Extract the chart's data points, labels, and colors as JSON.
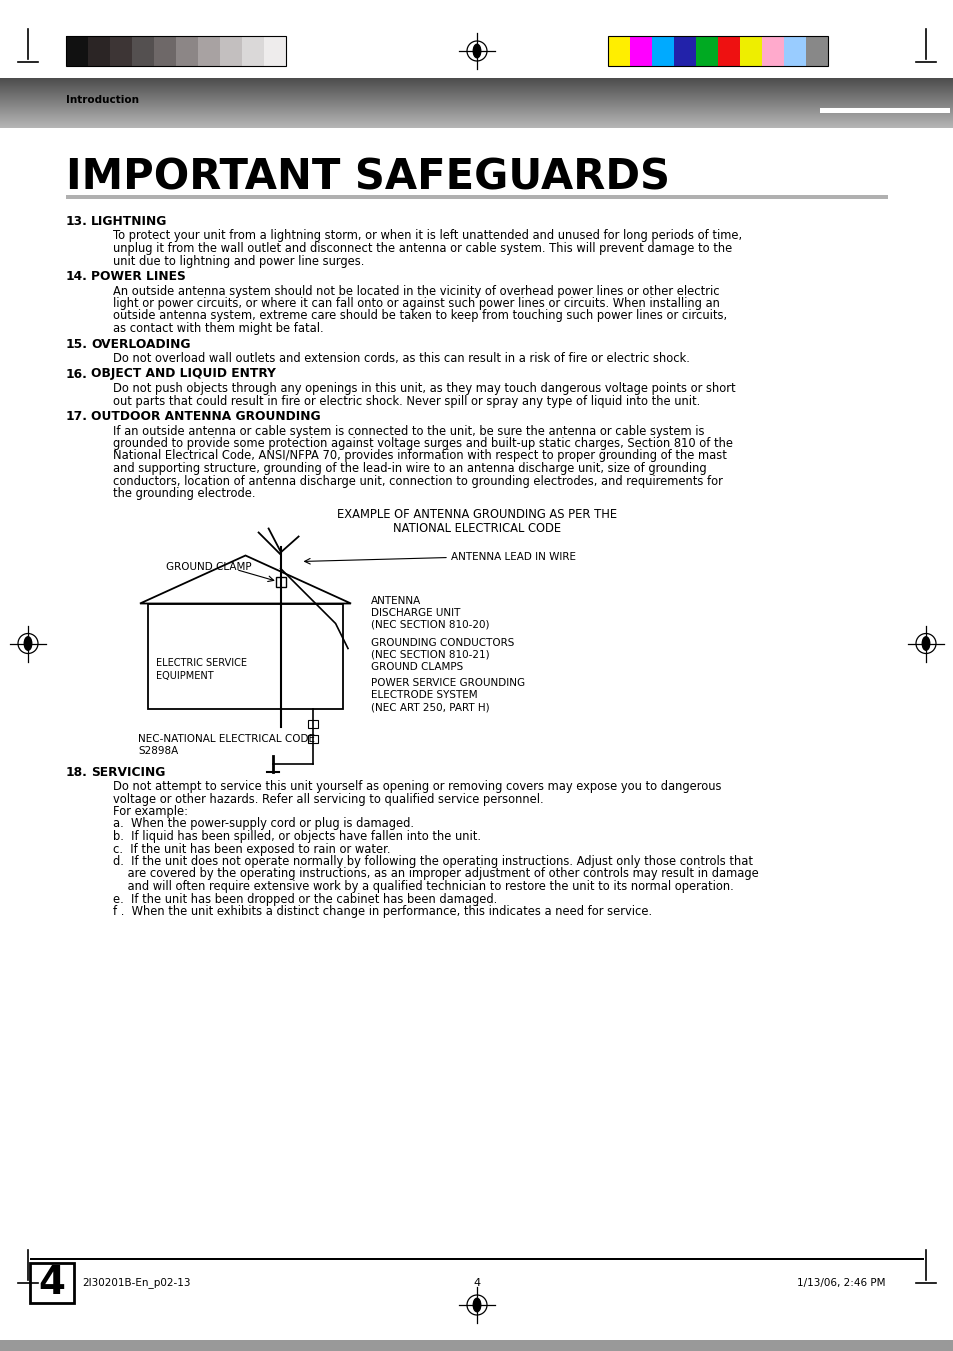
{
  "title": "IMPORTANT SAFEGUARDS",
  "section_label": "Introduction",
  "bg_color": "#ffffff",
  "items": [
    {
      "num": "13.",
      "heading": "LIGHTNING",
      "body_lines": [
        "To protect your unit from a lightning storm, or when it is left unattended and unused for long periods of time,",
        "unplug it from the wall outlet and disconnect the antenna or cable system. This will prevent damage to the",
        "unit due to lightning and power line surges."
      ]
    },
    {
      "num": "14.",
      "heading": "POWER LINES",
      "body_lines": [
        "An outside antenna system should not be located in the vicinity of overhead power lines or other electric",
        "light or power circuits, or where it can fall onto or against such power lines or circuits. When installing an",
        "outside antenna system, extreme care should be taken to keep from touching such power lines or circuits,",
        "as contact with them might be fatal."
      ]
    },
    {
      "num": "15.",
      "heading": "OVERLOADING",
      "body_lines": [
        "Do not overload wall outlets and extension cords, as this can result in a risk of fire or electric shock."
      ]
    },
    {
      "num": "16.",
      "heading": "OBJECT AND LIQUID ENTRY",
      "body_lines": [
        "Do not push objects through any openings in this unit, as they may touch dangerous voltage points or short",
        "out parts that could result in fire or electric shock. Never spill or spray any type of liquid into the unit."
      ]
    },
    {
      "num": "17.",
      "heading": "OUTDOOR ANTENNA GROUNDING",
      "body_lines": [
        "If an outside antenna or cable system is connected to the unit, be sure the antenna or cable system is",
        "grounded to provide some protection against voltage surges and built-up static charges, Section 810 of the",
        "National Electrical Code, ANSI/NFPA 70, provides information with respect to proper grounding of the mast",
        "and supporting structure, grounding of the lead-in wire to an antenna discharge unit, size of grounding",
        "conductors, location of antenna discharge unit, connection to grounding electrodes, and requirements for",
        "the grounding electrode."
      ]
    },
    {
      "num": "18.",
      "heading": "SERVICING",
      "body_lines": [
        "Do not attempt to service this unit yourself as opening or removing covers may expose you to dangerous",
        "voltage or other hazards. Refer all servicing to qualified service personnel.",
        "For example:",
        "a.  When the power-supply cord or plug is damaged.",
        "b.  If liquid has been spilled, or objects have fallen into the unit.",
        "c.  If the unit has been exposed to rain or water.",
        "d.  If the unit does not operate normally by following the operating instructions. Adjust only those controls that",
        "    are covered by the operating instructions, as an improper adjustment of other controls may result in damage",
        "    and will often require extensive work by a qualified technician to restore the unit to its normal operation.",
        "e.  If the unit has been dropped or the cabinet has been damaged.",
        "f .  When the unit exhibits a distinct change in performance, this indicates a need for service."
      ]
    }
  ],
  "diagram_title_line1": "EXAMPLE OF ANTENNA GROUNDING AS PER THE",
  "diagram_title_line2": "NATIONAL ELECTRICAL CODE",
  "footer_left": "2I30201B-En_p02-13",
  "footer_center": "4",
  "footer_right": "1/13/06, 2:46 PM",
  "page_number": "4",
  "bar_colors_left": [
    "#111111",
    "#2b2525",
    "#3d3535",
    "#545050",
    "#6e6868",
    "#8c8686",
    "#a8a2a2",
    "#c3bfbf",
    "#dad8d8",
    "#eeecec"
  ],
  "bar_colors_right": [
    "#ffee00",
    "#ff00ff",
    "#00aaff",
    "#2222aa",
    "#00aa22",
    "#ee1111",
    "#eeee00",
    "#ffaacc",
    "#99ccff",
    "#888888"
  ]
}
